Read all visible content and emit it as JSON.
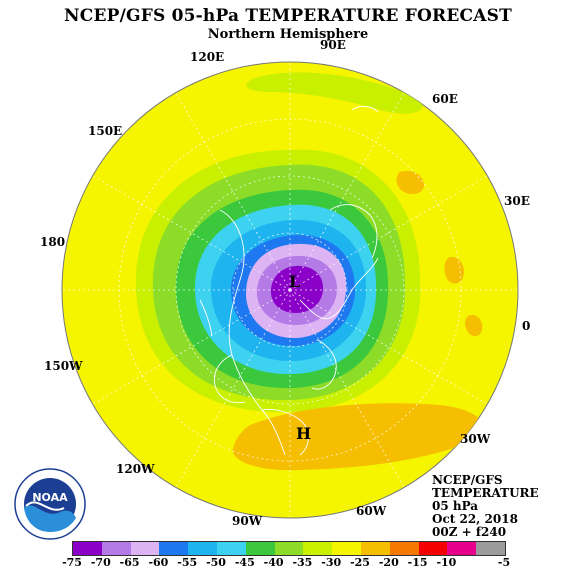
{
  "header": {
    "title": "NCEP/GFS 05-hPa TEMPERATURE FORECAST",
    "subtitle": "Northern Hemisphere"
  },
  "longitude_labels": {
    "e90": "90E",
    "e120": "120E",
    "e60": "60E",
    "e150": "150E",
    "e30": "30E",
    "d180": "180",
    "d0": "0",
    "w150": "150W",
    "w30": "30W",
    "w120": "120W",
    "w60": "60W",
    "w90": "90W"
  },
  "markers": {
    "low": "L",
    "high": "H"
  },
  "info": {
    "model": "NCEP/GFS",
    "variable": "TEMPERATURE",
    "level": "05 hPa",
    "date": "Oct 22, 2018",
    "run": "00Z + f240"
  },
  "logo": {
    "text": "NOAA",
    "ring_text": "NATIONAL OCEANIC AND ATMOSPHERIC ADMINISTRATION · U.S. DEPARTMENT OF COMMERCE"
  },
  "colorbar": {
    "labels": [
      "-75",
      "-70",
      "-65",
      "-60",
      "-55",
      "-50",
      "-45",
      "-40",
      "-35",
      "-30",
      "-25",
      "-20",
      "-15",
      "-10",
      "-5"
    ],
    "colors": [
      "#8a00c8",
      "#b47ae6",
      "#dcb4f4",
      "#1e78f0",
      "#1eb4f0",
      "#3cd2f0",
      "#3cc83c",
      "#8cdc28",
      "#c8f000",
      "#f5f500",
      "#f5be00",
      "#f57800",
      "#f50000",
      "#e6008c",
      "#9b9b9b"
    ]
  },
  "palette": {
    "ocean_bg": "#f5f500",
    "warm_band": "#f5be00",
    "coast": "#ffffff"
  }
}
